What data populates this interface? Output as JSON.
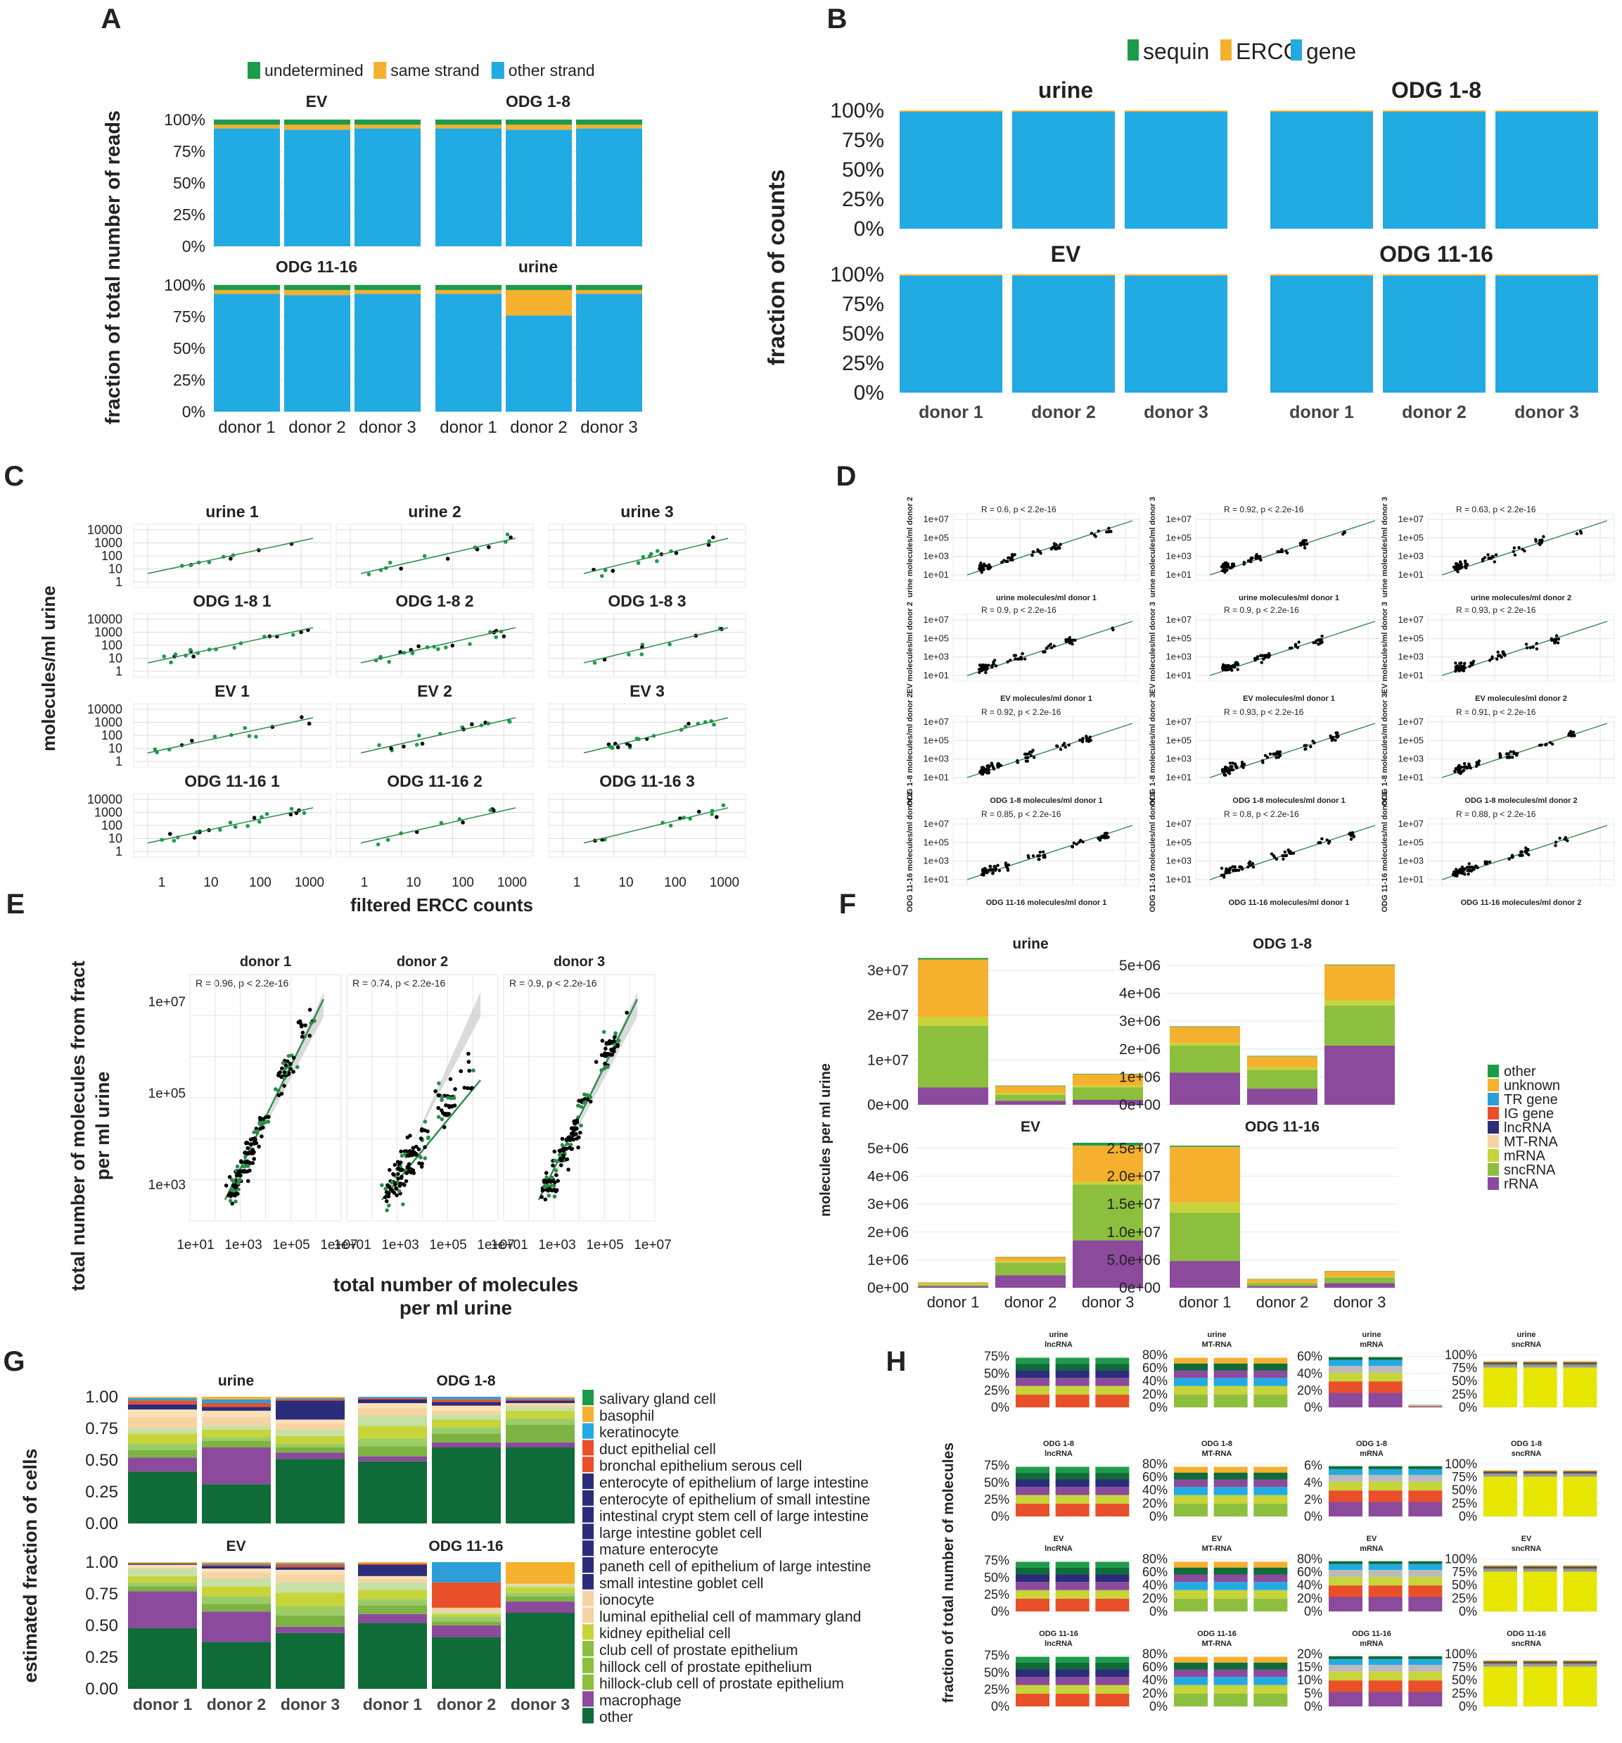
{
  "colors": {
    "green": "#1e9b4a",
    "orange": "#f5b02e",
    "blue": "#22aae2",
    "grey_panel": "#ffffff",
    "dark_green": "#0f6b37",
    "purple": "#8b4a9c",
    "lime": "#8dbf3e",
    "yellowgreen": "#c7d43a",
    "peach": "#f6d3a2",
    "navy": "#2b2d7a",
    "red": "#e9502a",
    "tr_blue": "#2d9ed8",
    "point": "#111111",
    "fit": "#2e8b4a"
  },
  "panel_letters": [
    "A",
    "B",
    "C",
    "D",
    "E",
    "F",
    "G",
    "H"
  ],
  "panelA": {
    "legend": [
      "undetermined",
      "same strand",
      "other strand"
    ],
    "ylabel": "fraction of total number of reads",
    "yticks": [
      "0%",
      "25%",
      "50%",
      "75%",
      "100%"
    ],
    "xcats": [
      "donor 1",
      "donor 2",
      "donor 3"
    ],
    "facets": [
      {
        "title": "EV",
        "stacks": [
          [
            93,
            3,
            4
          ],
          [
            92,
            4,
            4
          ],
          [
            93,
            3,
            4
          ]
        ]
      },
      {
        "title": "ODG 1-8",
        "stacks": [
          [
            93,
            3,
            4
          ],
          [
            92,
            4,
            4
          ],
          [
            93,
            3,
            4
          ]
        ]
      },
      {
        "title": "ODG 11-16",
        "stacks": [
          [
            93,
            3,
            4
          ],
          [
            92,
            4,
            4
          ],
          [
            93,
            3,
            4
          ]
        ]
      },
      {
        "title": "urine",
        "stacks": [
          [
            93,
            3,
            4
          ],
          [
            76,
            20,
            4
          ],
          [
            93,
            3,
            4
          ]
        ]
      }
    ]
  },
  "panelB": {
    "legend": [
      "sequin",
      "ERCC",
      "gene"
    ],
    "ylabel": "fraction of counts",
    "yticks": [
      "0%",
      "25%",
      "50%",
      "75%",
      "100%"
    ],
    "xcats": [
      "donor 1",
      "donor 2",
      "donor 3"
    ],
    "facets": [
      "urine",
      "ODG 1-8",
      "EV",
      "ODG 11-16"
    ]
  },
  "panelC": {
    "ylabel": "molecules/ml urine",
    "xlabel": "filtered ERCC counts",
    "yticks": [
      "10000",
      "1000",
      "100",
      "10",
      "1"
    ],
    "xticks": [
      "1",
      "10",
      "100",
      "1000"
    ],
    "facets": [
      "urine 1",
      "urine 2",
      "urine 3",
      "ODG 1-8 1",
      "ODG 1-8 2",
      "ODG 1-8 3",
      "EV 1",
      "EV 2",
      "EV 3",
      "ODG 11-16 1",
      "ODG 11-16 2",
      "ODG 11-16 3"
    ]
  },
  "panelD": {
    "stats": [
      [
        "R = 0.6, p < 2.2e-16",
        "R = 0.92, p < 2.2e-16",
        "R = 0.63, p < 2.2e-16"
      ],
      [
        "R = 0.9, p < 2.2e-16",
        "R = 0.9, p < 2.2e-16",
        "R = 0.93, p < 2.2e-16"
      ],
      [
        "R = 0.92, p < 2.2e-16",
        "R = 0.93, p < 2.2e-16",
        "R = 0.91, p < 2.2e-16"
      ],
      [
        "R = 0.85, p < 2.2e-16",
        "R = 0.8, p < 2.2e-16",
        "R = 0.88, p < 2.2e-16"
      ]
    ],
    "rows": [
      "urine",
      "EV",
      "ODG 1-8",
      "ODG 11-16"
    ],
    "ylabels": [
      [
        "urine molecules/ml donor 2",
        "urine molecules/ml donor 3",
        "urine molecules/ml donor 3"
      ],
      [
        "EV molecules/ml donor 2",
        "EV molecules/ml donor 3",
        "EV molecules/ml donor 3"
      ],
      [
        "ODG 1-8 molecules/ml donor 2",
        "ODG 1-8 molecules/ml donor 3",
        "ODG 1-8 molecules/ml donor 3"
      ],
      [
        "ODG 11-16 molecules/ml donor 2",
        "ODG 11-16 molecules/ml donor 3",
        "ODG 11-16 molecules/ml donor 3"
      ]
    ],
    "xlabels": [
      [
        "urine molecules/ml donor 1",
        "urine molecules/ml donor 1",
        "urine molecules/ml donor 2"
      ],
      [
        "EV molecules/ml donor 1",
        "EV molecules/ml donor 1",
        "EV molecules/ml donor 2"
      ],
      [
        "ODG 1-8 molecules/ml donor 1",
        "ODG 1-8 molecules/ml donor 1",
        "ODG 1-8 molecules/ml donor 2"
      ],
      [
        "ODG 11-16 molecules/ml donor 1",
        "ODG 11-16 molecules/ml donor 1",
        "ODG 11-16 molecules/ml donor 2"
      ]
    ],
    "yticks": [
      "1e+07",
      "1e+05",
      "1e+03",
      "1e+01"
    ]
  },
  "panelE": {
    "ylabel1": "total number of molecules from fract",
    "ylabel2": "per ml urine",
    "xlabel1": "total number of molecules",
    "xlabel2": "per ml urine",
    "yticks": [
      "1e+07",
      "1e+05",
      "1e+03"
    ],
    "xticks": [
      "1e+01",
      "1e+03",
      "1e+05",
      "1e+07"
    ],
    "facets": [
      {
        "title": "donor 1",
        "stat": "R = 0.96, p < 2.2e-16"
      },
      {
        "title": "donor 2",
        "stat": "R = 0.74, p < 2.2e-16"
      },
      {
        "title": "donor 3",
        "stat": "R = 0.9, p < 2.2e-16"
      }
    ]
  },
  "panelF": {
    "ylabel": "molecules per ml urine",
    "legend": [
      "other",
      "unknown",
      "TR gene",
      "IG gene",
      "lncRNA",
      "MT-RNA",
      "mRNA",
      "sncRNA",
      "rRNA"
    ],
    "xcats": [
      "donor 1",
      "donor 2",
      "donor 3"
    ],
    "facets": [
      {
        "title": "urine",
        "yticks": [
          "0e+00",
          "1e+07",
          "2e+07",
          "3e+07"
        ],
        "max": 30000000,
        "stacks": [
          [
            3500000.0,
            12500000.0,
            1800000.0,
            0,
            0,
            0,
            0,
            11700000.0,
            300000.0
          ],
          [
            800000.0,
            1200000.0,
            500000.0,
            0,
            0,
            0,
            0,
            1300000.0,
            100000.0
          ],
          [
            1000000.0,
            2500000.0,
            400000.0,
            0,
            0,
            0,
            0,
            2300000.0,
            100000.0
          ]
        ]
      },
      {
        "title": "ODG 1-8",
        "yticks": [
          "0e+00",
          "1e+06",
          "2e+06",
          "3e+06",
          "4e+06",
          "5e+06"
        ],
        "max": 5500000,
        "stacks": [
          [
            1200000.0,
            1000000.0,
            100000.0,
            0,
            0,
            0,
            0,
            600000.0,
            20000.0
          ],
          [
            600000.0,
            700000.0,
            100000.0,
            0,
            0,
            0,
            0,
            400000.0,
            20000.0
          ],
          [
            2200000.0,
            1500000.0,
            200000.0,
            0,
            0,
            0,
            0,
            1300000.0,
            20000.0
          ]
        ]
      },
      {
        "title": "EV",
        "yticks": [
          "0e+00",
          "1e+06",
          "2e+06",
          "3e+06",
          "4e+06",
          "5e+06"
        ],
        "max": 5300000,
        "stacks": [
          [
            50000.0,
            50000.0,
            20000.0,
            0,
            0,
            0,
            0,
            60000.0,
            10000.0
          ],
          [
            450000.0,
            450000.0,
            50000.0,
            0,
            0,
            0,
            0,
            150000.0,
            10000.0
          ],
          [
            1700000.0,
            2000000.0,
            100000.0,
            0,
            0,
            0,
            0,
            1300000.0,
            100000.0
          ]
        ]
      },
      {
        "title": "ODG 11-16",
        "yticks": [
          "0e+00",
          "5.0e+06",
          "1.0e+07",
          "1.5e+07",
          "2.0e+07",
          "2.5e+07"
        ],
        "max": 26000000,
        "stacks": [
          [
            4700000.0,
            8500000.0,
            1800000.0,
            0,
            0,
            0,
            0,
            9800000.0,
            200000.0
          ],
          [
            300000.0,
            500000.0,
            100000.0,
            0,
            0,
            0,
            0,
            600000.0,
            50000.0
          ],
          [
            800000.0,
            1000000.0,
            200000.0,
            0,
            0,
            0,
            0,
            900000.0,
            50000.0
          ]
        ]
      }
    ]
  },
  "panelG": {
    "ylabel": "estimated fraction of cells",
    "yticks": [
      "0.00",
      "0.25",
      "0.50",
      "0.75",
      "1.00"
    ],
    "xcats": [
      "donor 1",
      "donor 2",
      "donor 3"
    ],
    "legend": [
      "salivary gland cell",
      "basophil",
      "keratinocyte",
      "duct epithelial cell",
      "bronchal epithelium serous cell",
      "enterocyte of epithelium of large intestine",
      "enterocyte of epithelium of small intestine",
      "intestinal crypt stem cell of large intestine",
      "large intestine goblet cell",
      "mature enterocyte",
      "paneth cell of epithelium of large intestine",
      "small intestine goblet cell",
      "ionocyte",
      "luminal epithelial cell of mammary gland",
      "kidney epithelial cell",
      "club cell of prostate epithelium",
      "hillock cell of prostate epithelium",
      "hillock-club cell of prostate epithelium",
      "macrophage",
      "other"
    ],
    "facets": [
      {
        "title": "urine",
        "stacks": [
          [
            0.41,
            0.11,
            0.06,
            0.05,
            0.08,
            0.04,
            0.09,
            0.06,
            0.04,
            0.03,
            0.02,
            0.01
          ],
          [
            0.31,
            0.29,
            0.05,
            0.03,
            0.06,
            0.03,
            0.07,
            0.05,
            0.03,
            0.03,
            0.03,
            0.02
          ],
          [
            0.51,
            0.05,
            0.04,
            0.03,
            0.06,
            0.05,
            0.05,
            0.03,
            0.15,
            0.01,
            0.01,
            0.01
          ]
        ]
      },
      {
        "title": "ODG 1-8",
        "stacks": [
          [
            0.49,
            0.04,
            0.08,
            0.06,
            0.1,
            0.08,
            0.06,
            0.04,
            0.03,
            0.01,
            0.01,
            0.0
          ],
          [
            0.6,
            0.04,
            0.07,
            0.05,
            0.06,
            0.04,
            0.03,
            0.04,
            0.03,
            0.02,
            0.02,
            0.0
          ],
          [
            0.6,
            0.04,
            0.14,
            0.05,
            0.06,
            0.03,
            0.02,
            0.01,
            0.02,
            0.01,
            0.01,
            0.01
          ]
        ]
      },
      {
        "title": "EV",
        "stacks": [
          [
            0.48,
            0.29,
            0.04,
            0.03,
            0.05,
            0.06,
            0.01,
            0.02,
            0.01,
            0.0,
            0.0,
            0.01
          ],
          [
            0.37,
            0.24,
            0.06,
            0.06,
            0.08,
            0.06,
            0.05,
            0.03,
            0.02,
            0.01,
            0.01,
            0.01
          ],
          [
            0.44,
            0.05,
            0.09,
            0.07,
            0.11,
            0.08,
            0.06,
            0.04,
            0.02,
            0.02,
            0.01,
            0.01
          ]
        ]
      },
      {
        "title": "ODG 11-16",
        "stacks": [
          [
            0.52,
            0.07,
            0.07,
            0.05,
            0.07,
            0.06,
            0.03,
            0.02,
            0.09,
            0.01,
            0.0,
            0.01
          ],
          [
            0.41,
            0.09,
            0.03,
            0.04,
            0.02,
            0.02,
            0.03,
            0.0,
            0.0,
            0.2,
            0.16,
            0.0
          ],
          [
            0.6,
            0.09,
            0.04,
            0.03,
            0.04,
            0.02,
            0.01,
            0.0,
            0.0,
            0.0,
            0.0,
            0.17
          ]
        ]
      }
    ]
  },
  "panelH": {
    "ylabel": "fraction of total number of molecules",
    "rows": [
      "urine",
      "ODG 1-8",
      "EV",
      "ODG 11-16"
    ],
    "cols": [
      "lncRNA",
      "MT-RNA",
      "mRNA",
      "sncRNA"
    ],
    "yticks": {
      "lncRNA": [
        "0%",
        "25%",
        "50%",
        "75%"
      ],
      "MT-RNA": [
        "0%",
        "20%",
        "40%",
        "60%",
        "80%"
      ],
      "mRNA_urine": [
        "0%",
        "20%",
        "40%",
        "60%"
      ],
      "mRNA_odg18": [
        "0%",
        "2%",
        "4%",
        "6%"
      ],
      "mRNA_ev": [
        "0%",
        "20%",
        "40%",
        "60%",
        "80%"
      ],
      "mRNA_odg1116": [
        "0%",
        "5%",
        "10%",
        "15%",
        "20%"
      ],
      "sncRNA": [
        "0%",
        "25%",
        "50%",
        "75%",
        "100%"
      ]
    }
  }
}
